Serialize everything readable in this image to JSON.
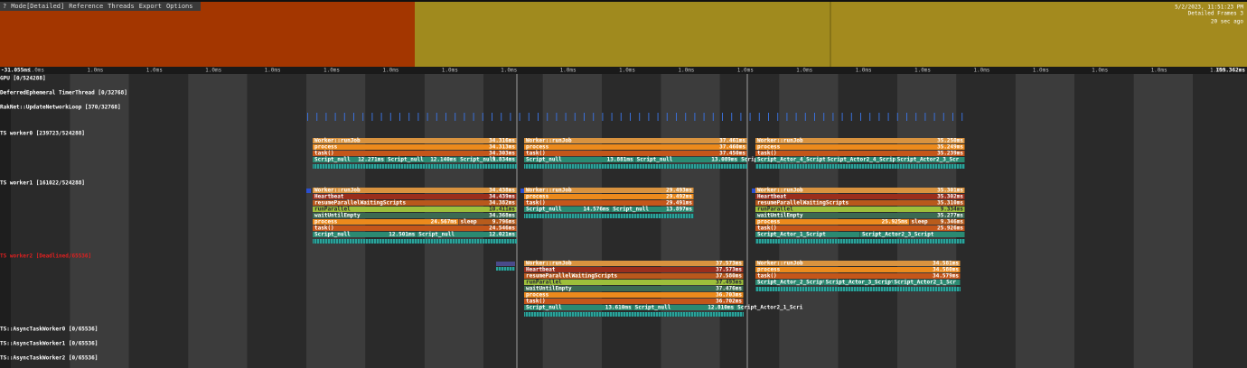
{
  "menu": [
    "?",
    "Mode[Detailed]",
    "Reference",
    "Threads",
    "Export",
    "Options"
  ],
  "header": {
    "date": "5/2/2023, 11:51:23 PM",
    "frames": "Detailed Frames 3",
    "ago": "20 sec ago"
  },
  "ruler": {
    "start": "-31.055ms",
    "end": "159.362ms",
    "ticks": [
      "1.0ms",
      "1.0ms",
      "1.0ms",
      "1.0ms",
      "1.0ms",
      "1.0ms",
      "1.0ms",
      "1.0ms",
      "1.0ms",
      "1.0ms",
      "1.0ms",
      "1.0ms",
      "1.0ms",
      "1.0ms",
      "1.0ms",
      "1.0ms",
      "1.0ms",
      "1.0ms",
      "1.0ms",
      "1.0ms",
      "1.0ms"
    ]
  },
  "threads": [
    "GPU [0/524288]",
    "DeferredEphemeral TimerThread [0/32768]",
    "RakNet::UpdateNetworkLoop [370/32768]",
    "TS worker0 [239723/524288]",
    "TS worker1 [161022/524288]",
    "TS worker2 [Deadlined/65536]",
    "TS::AsyncTaskWorker0 [0/65536]",
    "TS::AsyncTaskWorker1 [0/65536]",
    "TS::AsyncTaskWorker2 [0/65536]"
  ],
  "workers": [
    {
      "groups": [
        {
          "rows": [
            [
              {
                "name": "Worker::runJob",
                "time": "34.316ms"
              }
            ],
            [
              {
                "name": "process",
                "time": "34.313ms"
              }
            ],
            [
              {
                "name": "task()",
                "time": "34.303ms"
              }
            ],
            [
              {
                "name": "Script_null",
                "time": "12.271ms"
              },
              {
                "name": "Script_null",
                "time": "12.140ms"
              },
              {
                "name": "Script_null",
                "time": "9.834ms"
              }
            ]
          ]
        },
        {
          "rows": [
            [
              {
                "name": "Worker::runJob",
                "time": "37.461ms"
              }
            ],
            [
              {
                "name": "process",
                "time": "37.460ms"
              }
            ],
            [
              {
                "name": "task()",
                "time": "37.450ms"
              }
            ],
            [
              {
                "name": "Script_null",
                "time": "13.881ms"
              },
              {
                "name": "Script_null",
                "time": "13.089ms"
              },
              {
                "name": "Script_Actor2_1_Scri"
              }
            ]
          ]
        },
        {
          "rows": [
            [
              {
                "name": "Worker::runJob",
                "time": "35.250ms"
              }
            ],
            [
              {
                "name": "process",
                "time": "35.249ms"
              }
            ],
            [
              {
                "name": "task()",
                "time": "35.239ms"
              }
            ],
            [
              {
                "name": "Script_Actor_4_Script"
              },
              {
                "name": "Script_Actor2_4_Script"
              },
              {
                "name": "Script_Actor2_3_Scr"
              }
            ]
          ]
        }
      ]
    },
    {
      "groups": [
        {
          "rows": [
            [
              {
                "name": "Worker::runJob",
                "time": "34.438ms"
              }
            ],
            [
              {
                "name": "Heartbeat",
                "time": "34.439ms"
              }
            ],
            [
              {
                "name": "resumeParallelWaitingScripts",
                "time": "34.382ms"
              }
            ],
            [
              {
                "name": "runParallel",
                "time": "10.411ms"
              }
            ],
            [
              {
                "name": "waitUntilEmpty",
                "time": "34.368ms"
              }
            ],
            [
              {
                "name": "process",
                "time": "24.567ms"
              },
              {
                "name": "sleep",
                "time": "9.796ms"
              }
            ],
            [
              {
                "name": "task()",
                "time": "24.546ms"
              }
            ],
            [
              {
                "name": "Script_null",
                "time": "12.501ms"
              },
              {
                "name": "Script_null",
                "time": "12.021ms"
              }
            ]
          ]
        },
        {
          "rows": [
            [
              {
                "name": "Worker::runJob",
                "time": "29.493ms"
              }
            ],
            [
              {
                "name": "process",
                "time": "29.492ms"
              }
            ],
            [
              {
                "name": "task()",
                "time": "29.491ms"
              }
            ],
            [
              {
                "name": "Script_null",
                "time": "14.576ms"
              },
              {
                "name": "Script_null",
                "time": "13.897ms"
              }
            ]
          ]
        },
        {
          "rows": [
            [
              {
                "name": "Worker::runJob",
                "time": "35.301ms"
              }
            ],
            [
              {
                "name": "Heartbeat",
                "time": "35.302ms"
              }
            ],
            [
              {
                "name": "resumeParallelWaitingScripts",
                "time": "35.310ms"
              }
            ],
            [
              {
                "name": "runParallel",
                "time": "9.334ms"
              }
            ],
            [
              {
                "name": "waitUntilEmpty",
                "time": "35.277ms"
              }
            ],
            [
              {
                "name": "process",
                "time": "25.925ms"
              },
              {
                "name": "sleep",
                "time": "9.346ms"
              }
            ],
            [
              {
                "name": "task()",
                "time": "25.926ms"
              }
            ],
            [
              {
                "name": "Script_Actor_1_Script"
              },
              {
                "name": "Script_Actor2_3_Script"
              }
            ]
          ]
        }
      ]
    },
    {
      "groups": [
        {
          "rows": [
            [
              {
                "name": "Worker::runJob",
                "time": "37.573ms"
              }
            ],
            [
              {
                "name": "Heartbeat",
                "time": "37.573ms"
              }
            ],
            [
              {
                "name": "resumeParallelWaitingScripts",
                "time": "37.580ms"
              }
            ],
            [
              {
                "name": "runParallel",
                "time": "37.493ms"
              }
            ],
            [
              {
                "name": "waitUntilEmpty",
                "time": "37.476ms"
              }
            ],
            [
              {
                "name": "process",
                "time": "36.703ms"
              }
            ],
            [
              {
                "name": "task()",
                "time": "36.702ms"
              }
            ],
            [
              {
                "name": "Script_null",
                "time": "13.610ms"
              },
              {
                "name": "Script_null",
                "time": "12.810ms"
              },
              {
                "name": "Script_Actor2_1_Scri"
              }
            ]
          ]
        },
        {
          "rows": [
            [
              {
                "name": "Worker::runJob",
                "time": "34.581ms"
              }
            ],
            [
              {
                "name": "process",
                "time": "34.580ms"
              }
            ],
            [
              {
                "name": "task()",
                "time": "34.579ms"
              }
            ],
            [
              {
                "name": "Script_Actor_2_Script"
              },
              {
                "name": "Script_Actor_3_Script"
              },
              {
                "name": "Script_Actor2_1_Scr"
              }
            ]
          ]
        }
      ]
    }
  ]
}
